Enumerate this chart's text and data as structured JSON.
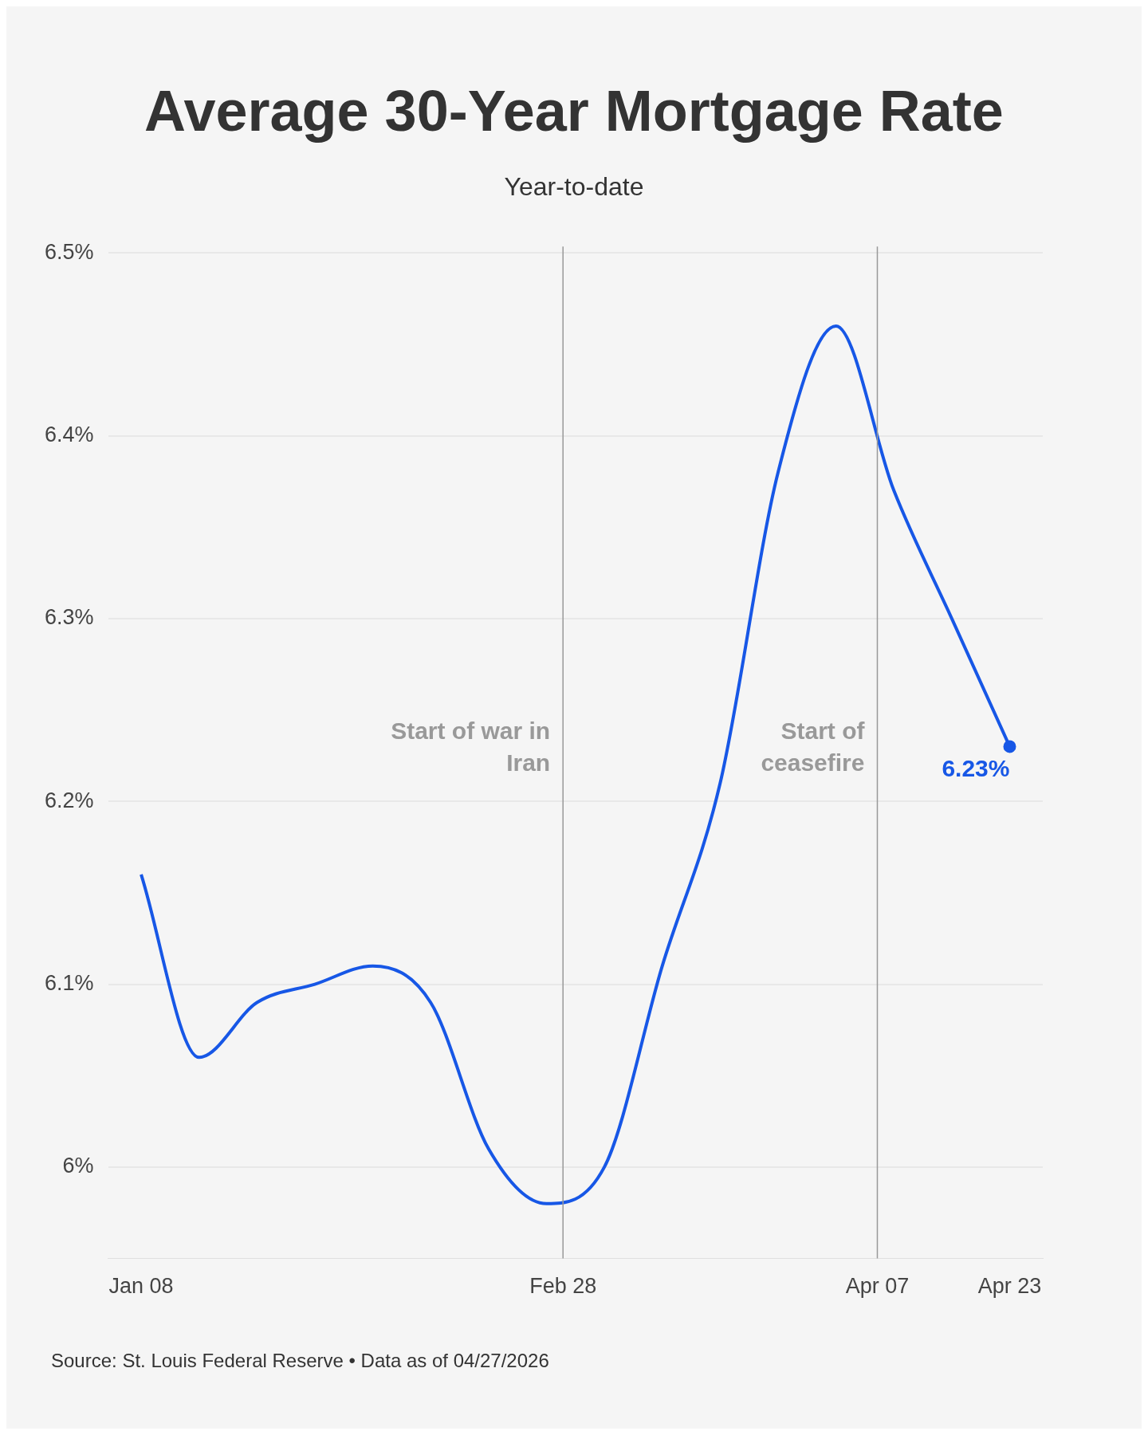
{
  "chart_data": {
    "type": "line",
    "title": "Average 30-Year Mortgage Rate",
    "subtitle": "Year-to-date",
    "x": [
      "2026-01-08",
      "2026-01-15",
      "2026-01-22",
      "2026-01-29",
      "2026-02-05",
      "2026-02-12",
      "2026-02-19",
      "2026-02-26",
      "2026-03-05",
      "2026-03-12",
      "2026-03-19",
      "2026-03-26",
      "2026-04-02",
      "2026-04-09",
      "2026-04-16",
      "2026-04-23"
    ],
    "series": [
      {
        "color": "#1757e6",
        "values": [
          6.16,
          6.06,
          6.09,
          6.1,
          6.11,
          6.09,
          6.01,
          5.98,
          6.0,
          6.11,
          6.21,
          6.38,
          6.46,
          6.37,
          6.3,
          6.23
        ],
        "value_labels": [
          null,
          null,
          null,
          null,
          null,
          null,
          null,
          null,
          null,
          null,
          null,
          null,
          null,
          null,
          null,
          "6.23%"
        ]
      }
    ],
    "xlim": [
      "2026-01-04",
      "2026-04-27"
    ],
    "xticks": [
      {
        "value": "2026-01-08",
        "label": "Jan 08"
      },
      {
        "value": "2026-02-28",
        "label": "Feb 28"
      },
      {
        "value": "2026-04-07",
        "label": "Apr 07"
      },
      {
        "value": "2026-04-23",
        "label": "Apr 23"
      }
    ],
    "ylim": [
      5.95,
      6.5
    ],
    "yticks": [
      {
        "value": 6,
        "label": "6%"
      },
      {
        "value": 6.1,
        "label": "6.1%"
      },
      {
        "value": 6.2,
        "label": "6.2%"
      },
      {
        "value": 6.3,
        "label": "6.3%"
      },
      {
        "value": 6.4,
        "label": "6.4%"
      },
      {
        "value": 6.5,
        "label": "6.5%"
      }
    ],
    "grid": "y",
    "legend": false,
    "line_style": "solid",
    "ref_lines": [
      {
        "axis": "x",
        "value": "2026-02-28",
        "label": "Start of war in Iran",
        "color": "#999999"
      },
      {
        "axis": "x",
        "value": "2026-04-07",
        "label": "Start of ceasefire",
        "color": "#999999"
      }
    ],
    "annotations": [
      "Source: St. Louis Federal Reserve • Data as of 04/27/2026"
    ]
  }
}
